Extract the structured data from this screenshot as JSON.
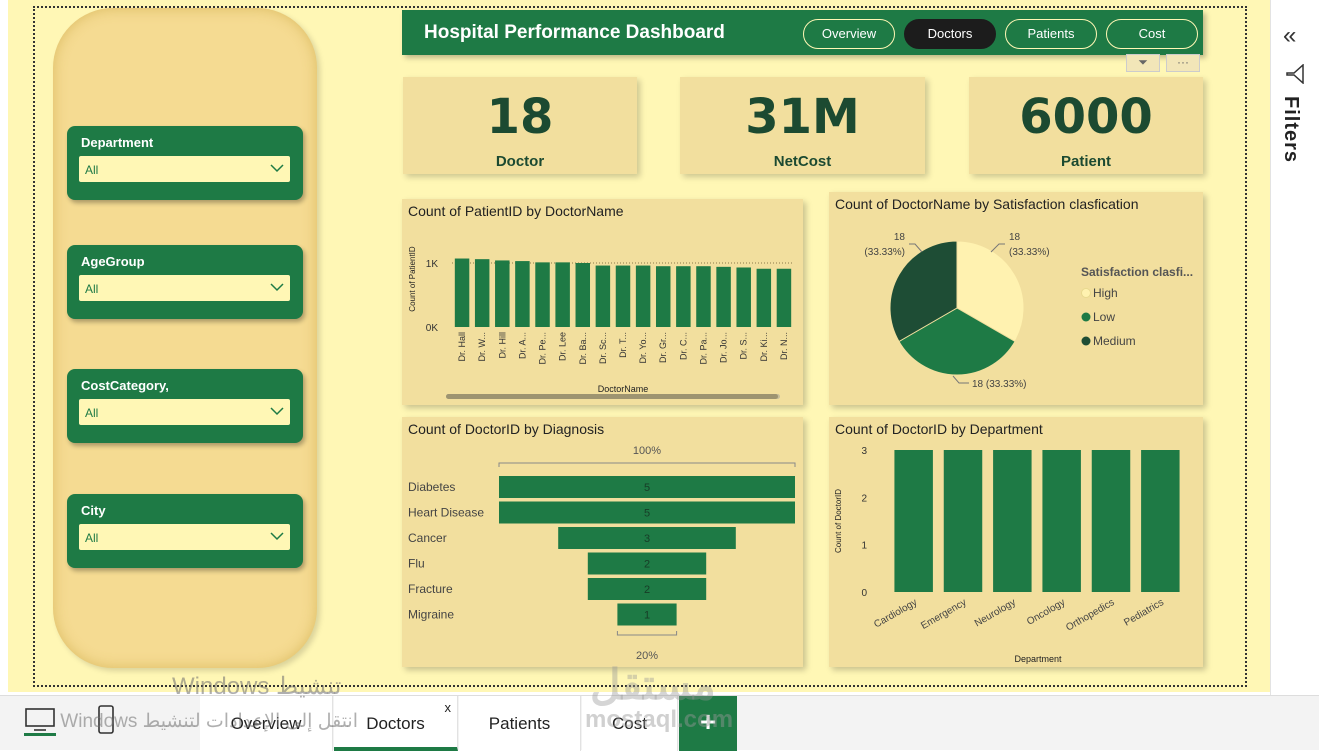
{
  "header": {
    "title": "Hospital Performance Dashboard",
    "nav": [
      "Overview",
      "Doctors",
      "Patients",
      "Cost"
    ],
    "active_nav": "Doctors"
  },
  "slicers": [
    {
      "title": "Department",
      "value": "All"
    },
    {
      "title": "AgeGroup",
      "value": "All"
    },
    {
      "title": "CostCategory,",
      "value": "All"
    },
    {
      "title": "City",
      "value": "All"
    }
  ],
  "kpis": [
    {
      "value": "18",
      "label": "Doctor"
    },
    {
      "value": "31M",
      "label": "NetCost"
    },
    {
      "value": "6000",
      "label": "Patient"
    }
  ],
  "filters_pane": {
    "label": "Filters"
  },
  "tabs": [
    "Overview",
    "Doctors",
    "Patients",
    "Cost"
  ],
  "active_tab": "Doctors",
  "tab_close": "x",
  "add_tab": "+",
  "watermarks": [
    "Windows تنشيط",
    "انتقل إلى الإعدادات لتنشيط Windows",
    "مستقل",
    "mostaql.com"
  ],
  "colors": {
    "accent": "#1e7a45",
    "dark": "#1c4a31",
    "card": "#f2df9e",
    "canvas": "#fff7b5",
    "medium": "#1e4d35",
    "high": "#fff2b0"
  },
  "chart_data": [
    {
      "type": "bar",
      "title": "Count of PatientID by DoctorName",
      "xlabel": "DoctorName",
      "ylabel": "Count of PatientID",
      "yticks": [
        "1K",
        "0K"
      ],
      "categories": [
        "Dr. Hall",
        "Dr. W...",
        "Dr. Hill",
        "Dr. A...",
        "Dr. Pe...",
        "Dr. Lee",
        "Dr. Ba...",
        "Dr. Sc...",
        "Dr. T...",
        "Dr. Yo...",
        "Dr. Gr...",
        "Dr. C...",
        "Dr. Pa...",
        "Dr. Jo...",
        "Dr. S...",
        "Dr. Ki...",
        "Dr. N..."
      ],
      "values": [
        1070,
        1060,
        1040,
        1030,
        1010,
        1010,
        1000,
        960,
        960,
        960,
        950,
        950,
        950,
        940,
        930,
        910,
        910
      ],
      "ylim": [
        0,
        1200
      ]
    },
    {
      "type": "pie",
      "title": "Count of DoctorName by Satisfaction clasfication",
      "legend_title": "Satisfaction clasfi...",
      "slices": [
        {
          "name": "High",
          "value": 18,
          "label": "18",
          "pct": "(33.33%)"
        },
        {
          "name": "Low",
          "value": 18,
          "label": "18 (33.33%)",
          "pct": ""
        },
        {
          "name": "Medium",
          "value": 18,
          "label": "18",
          "pct": "(33.33%)"
        }
      ]
    },
    {
      "type": "bar",
      "orientation": "funnel",
      "title": "Count of DoctorID by Diagnosis",
      "top_label": "100%",
      "bottom_label": "20%",
      "categories": [
        "Diabetes",
        "Heart Disease",
        "Cancer",
        "Flu",
        "Fracture",
        "Migraine"
      ],
      "values": [
        5,
        5,
        3,
        2,
        2,
        1
      ]
    },
    {
      "type": "bar",
      "title": "Count of DoctorID by Department",
      "xlabel": "Department",
      "ylabel": "Count of DoctorID",
      "categories": [
        "Cardiology",
        "Emergency",
        "Neurology",
        "Oncology",
        "Orthopedics",
        "Pediatrics"
      ],
      "values": [
        3,
        3,
        3,
        3,
        3,
        3
      ],
      "yticks": [
        0,
        1,
        2,
        3
      ],
      "ylim": [
        0,
        3
      ]
    }
  ]
}
